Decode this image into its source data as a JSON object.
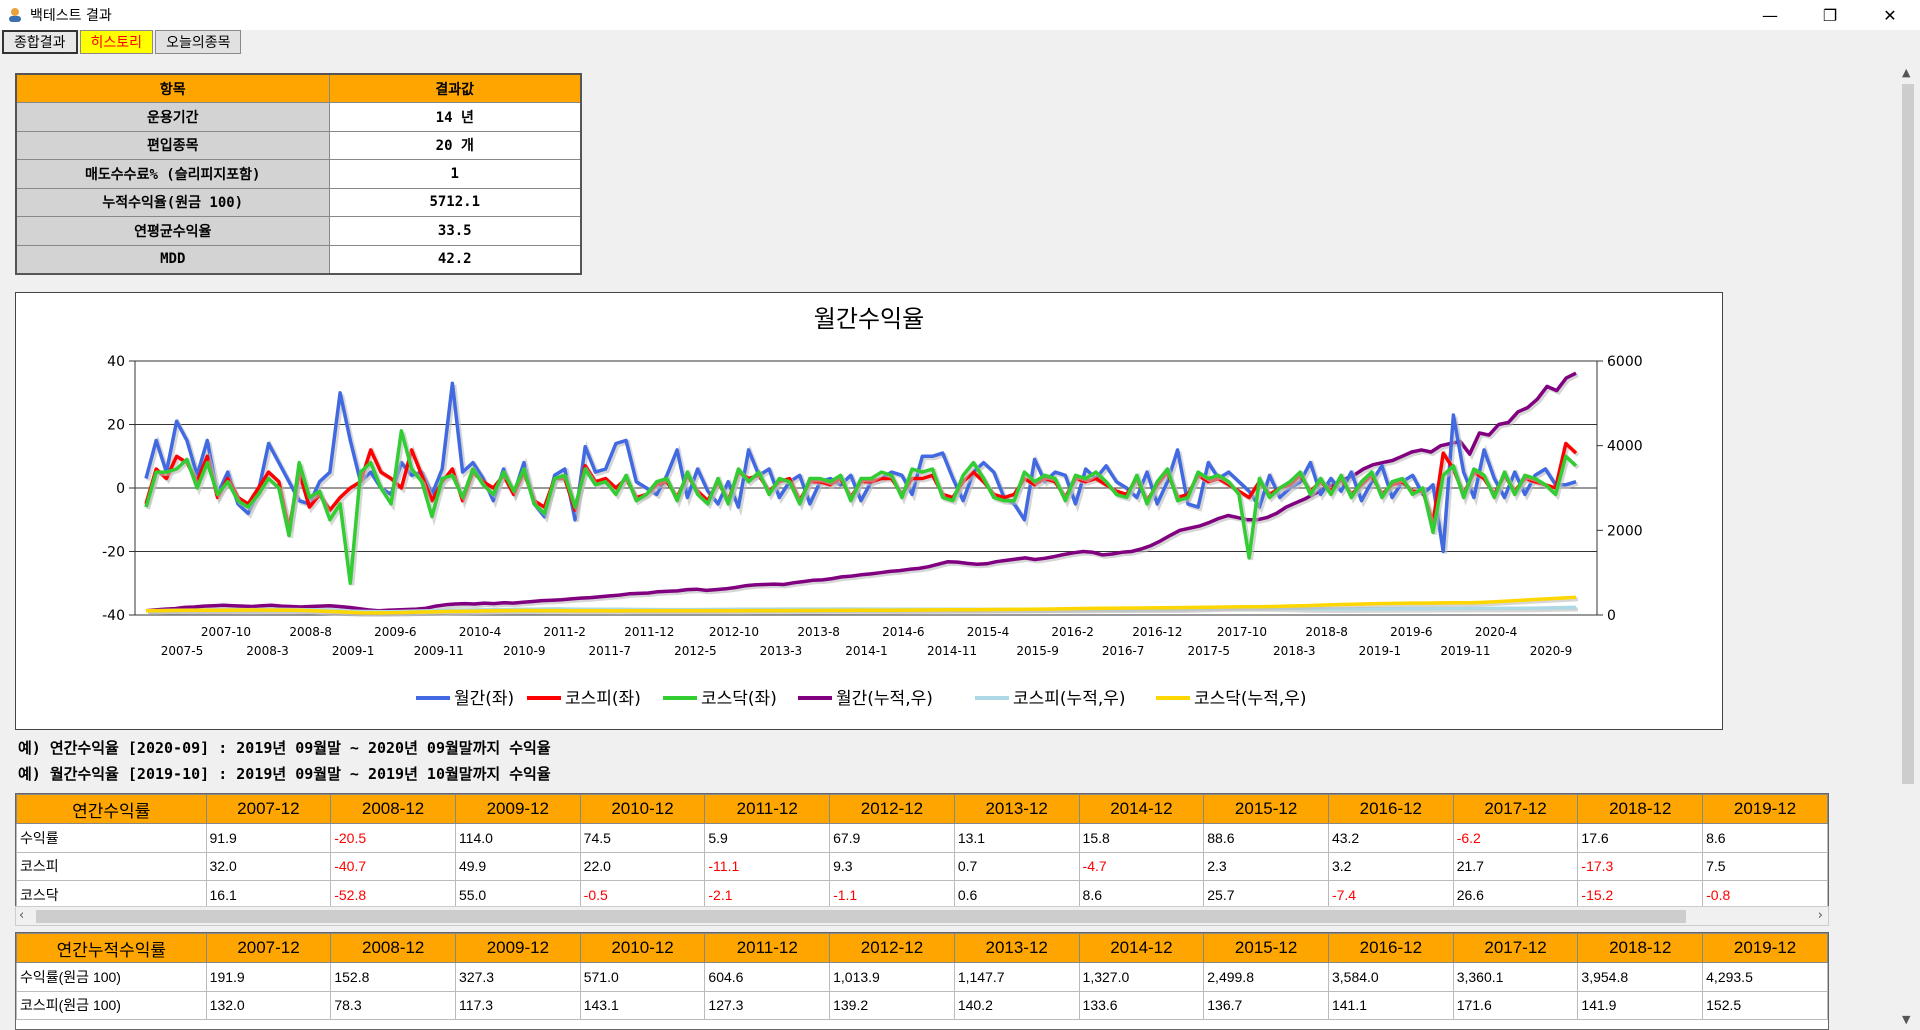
{
  "window": {
    "title": "백테스트 결과",
    "minimize": "—",
    "maximize": "❐",
    "close": "✕"
  },
  "tabs": [
    "종합결과",
    "히스토리",
    "오늘의종목"
  ],
  "summary": {
    "header": [
      "항목",
      "결과값"
    ],
    "rows": [
      [
        "운용기간",
        "14 년"
      ],
      [
        "편입종목",
        "20 개"
      ],
      [
        "매도수수료% (슬리피지포함)",
        "1"
      ],
      [
        "누적수익율(원금 100)",
        "5712.1"
      ],
      [
        "연평균수익율",
        "33.5"
      ],
      [
        "MDD",
        "42.2"
      ]
    ]
  },
  "notes": [
    "예) 연간수익율 [2020-09] : 2019년 09월말 ~ 2020년 09월말까지 수익율",
    "예) 월간수익율 [2019-10] : 2019년 09월말 ~ 2019년 10월말까지 수익율"
  ],
  "annual_table": {
    "header": [
      "연간수익률",
      "2007-12",
      "2008-12",
      "2009-12",
      "2010-12",
      "2011-12",
      "2012-12",
      "2013-12",
      "2014-12",
      "2015-12",
      "2016-12",
      "2017-12",
      "2018-12",
      "2019-12"
    ],
    "rows": [
      [
        "수익률",
        "91.9",
        "-20.5",
        "114.0",
        "74.5",
        "5.9",
        "67.9",
        "13.1",
        "15.8",
        "88.6",
        "43.2",
        "-6.2",
        "17.6",
        "8.6"
      ],
      [
        "코스피",
        "32.0",
        "-40.7",
        "49.9",
        "22.0",
        "-11.1",
        "9.3",
        "0.7",
        "-4.7",
        "2.3",
        "3.2",
        "21.7",
        "-17.3",
        "7.5"
      ],
      [
        "코스닥",
        "16.1",
        "-52.8",
        "55.0",
        "-0.5",
        "-2.1",
        "-1.1",
        "0.6",
        "8.6",
        "25.7",
        "-7.4",
        "26.6",
        "-15.2",
        "-0.8"
      ]
    ]
  },
  "cumulative_table": {
    "header": [
      "연간누적수익률",
      "2007-12",
      "2008-12",
      "2009-12",
      "2010-12",
      "2011-12",
      "2012-12",
      "2013-12",
      "2014-12",
      "2015-12",
      "2016-12",
      "2017-12",
      "2018-12",
      "2019-12"
    ],
    "rows": [
      [
        "수익률(원금 100)",
        "191.9",
        "152.8",
        "327.3",
        "571.0",
        "604.6",
        "1,013.9",
        "1,147.7",
        "1,327.0",
        "2,499.8",
        "3,584.0",
        "3,360.1",
        "3,954.8",
        "4,293.5"
      ],
      [
        "코스피(원금 100)",
        "132.0",
        "78.3",
        "117.3",
        "143.1",
        "127.3",
        "139.2",
        "140.2",
        "133.6",
        "136.7",
        "141.1",
        "171.6",
        "141.9",
        "152.5"
      ]
    ]
  },
  "chart_data": {
    "type": "line",
    "title": "월간수익율",
    "left_axis": {
      "min": -40,
      "max": 40,
      "ticks": [
        "40",
        "20",
        "0",
        "-20",
        "-40"
      ]
    },
    "right_axis": {
      "min": 0,
      "max": 6000,
      "ticks": [
        "6000",
        "4000",
        "2000",
        "0"
      ]
    },
    "x_labels_upper": [
      "2007-10",
      "2008-8",
      "2009-6",
      "2010-4",
      "2011-2",
      "2011-12",
      "2012-10",
      "2013-8",
      "2014-6",
      "2015-4",
      "2016-2",
      "2016-12",
      "2017-10",
      "2018-8",
      "2019-6",
      "2020-4"
    ],
    "x_labels_lower": [
      "2007-5",
      "2008-3",
      "2009-1",
      "2009-11",
      "2010-9",
      "2011-7",
      "2012-5",
      "2013-3",
      "2014-1",
      "2014-11",
      "2015-9",
      "2016-7",
      "2017-5",
      "2018-3",
      "2019-1",
      "2019-11",
      "2020-9"
    ],
    "legend": [
      "월간(좌)",
      "코스피(좌)",
      "코스닥(좌)",
      "월간(누적,우)",
      "코스피(누적,우)",
      "코스닥(누적,우)"
    ],
    "colors": [
      "#4169e1",
      "#ff0000",
      "#32cd32",
      "#800080",
      "#add8e6",
      "#ffd700"
    ],
    "series": [
      {
        "name": "월간(좌)",
        "axis": "left",
        "values": [
          3,
          15,
          5,
          21,
          15,
          4,
          15,
          -2,
          5,
          -5,
          -8,
          -1,
          14,
          8,
          2,
          -4,
          -5,
          2,
          5,
          30,
          15,
          2,
          5,
          0,
          -2,
          8,
          4,
          5,
          -2,
          6,
          33,
          5,
          8,
          3,
          -4,
          6,
          -2,
          8,
          -5,
          -9,
          4,
          6,
          -10,
          13,
          5,
          6,
          14,
          15,
          2,
          0,
          -2,
          4,
          12,
          -3,
          6,
          -1,
          -5,
          2,
          -6,
          12,
          4,
          6,
          -3,
          2,
          4,
          -5,
          2,
          3,
          1,
          4,
          -4,
          2,
          3,
          5,
          4,
          -2,
          10,
          10,
          11,
          3,
          -4,
          5,
          8,
          5,
          -3,
          -5,
          -10,
          9,
          2,
          5,
          4,
          -5,
          6,
          3,
          7,
          2,
          0,
          -3,
          5,
          -5,
          2,
          12,
          -5,
          -6,
          8,
          3,
          5,
          2,
          -1,
          -6,
          4,
          -3,
          0,
          2,
          8,
          -2,
          3,
          -1,
          5,
          -4,
          2,
          7,
          -3,
          2,
          4,
          -2,
          1,
          -20,
          23,
          5,
          -3,
          12,
          3,
          -3,
          5,
          -2,
          4,
          6,
          1,
          1,
          2
        ]
      },
      {
        "name": "코스피(좌)",
        "axis": "left",
        "values": [
          -5,
          6,
          3,
          10,
          8,
          2,
          10,
          -3,
          3,
          -3,
          -5,
          0,
          5,
          2,
          -13,
          5,
          -6,
          -2,
          -7,
          -3,
          0,
          2,
          12,
          5,
          3,
          0,
          12,
          4,
          -4,
          2,
          6,
          -4,
          5,
          2,
          0,
          4,
          -2,
          5,
          -4,
          -6,
          3,
          3,
          -7,
          7,
          2,
          3,
          0,
          3,
          -3,
          -2,
          1,
          2,
          -3,
          4,
          -1,
          -4,
          2,
          -4,
          5,
          3,
          4,
          -1,
          2,
          3,
          -4,
          2,
          2,
          1,
          3,
          -3,
          2,
          2,
          3,
          3,
          -2,
          3,
          3,
          4,
          -2,
          -3,
          2,
          5,
          2,
          -2,
          -3,
          -2,
          3,
          1,
          3,
          2,
          -3,
          3,
          2,
          3,
          1,
          -1,
          -2,
          3,
          -4,
          1,
          5,
          -3,
          -2,
          4,
          2,
          3,
          1,
          -1,
          -3,
          2,
          -2,
          0,
          1,
          4,
          -1,
          2,
          -1,
          3,
          -2,
          1,
          4,
          -2,
          1,
          2,
          -1,
          -1,
          -11,
          11,
          6,
          -2,
          5,
          3,
          -2,
          4,
          -1,
          3,
          2,
          1,
          0,
          14,
          11
        ]
      },
      {
        "name": "코스닥(좌)",
        "axis": "left",
        "values": [
          -6,
          5,
          5,
          6,
          9,
          0,
          8,
          -2,
          2,
          -4,
          -6,
          -2,
          3,
          0,
          -15,
          8,
          -3,
          -1,
          -10,
          -5,
          -30,
          5,
          8,
          0,
          -5,
          18,
          6,
          2,
          -9,
          3,
          4,
          -3,
          6,
          1,
          -2,
          5,
          -1,
          6,
          -5,
          -8,
          3,
          4,
          -6,
          6,
          1,
          2,
          -2,
          4,
          -4,
          -2,
          2,
          3,
          -4,
          5,
          -2,
          -5,
          3,
          -5,
          6,
          2,
          5,
          -2,
          3,
          2,
          -5,
          3,
          3,
          2,
          4,
          -4,
          3,
          3,
          5,
          4,
          -3,
          6,
          5,
          6,
          -3,
          -4,
          4,
          8,
          3,
          -3,
          -4,
          -4,
          5,
          2,
          4,
          3,
          -4,
          4,
          3,
          5,
          2,
          -2,
          -3,
          4,
          -5,
          2,
          6,
          -4,
          -3,
          5,
          3,
          4,
          2,
          -2,
          -22,
          3,
          -3,
          0,
          2,
          5,
          -2,
          3,
          -2,
          4,
          -3,
          2,
          5,
          -3,
          2,
          3,
          -2,
          0,
          -14,
          4,
          7,
          -3,
          6,
          4,
          -3,
          5,
          -2,
          4,
          3,
          1,
          -2,
          10,
          7
        ]
      },
      {
        "name": "월간(누적,우)",
        "axis": "right",
        "values": [
          100,
          120,
          140,
          150,
          180,
          190,
          210,
          220,
          230,
          220,
          210,
          200,
          220,
          230,
          210,
          200,
          190,
          200,
          210,
          220,
          200,
          180,
          150,
          120,
          100,
          110,
          120,
          130,
          140,
          160,
          210,
          240,
          260,
          270,
          260,
          280,
          270,
          290,
          280,
          300,
          320,
          340,
          350,
          360,
          380,
          400,
          410,
          430,
          450,
          470,
          500,
          510,
          520,
          550,
          560,
          570,
          600,
          610,
          580,
          600,
          620,
          650,
          690,
          710,
          720,
          730,
          720,
          760,
          790,
          820,
          830,
          860,
          900,
          920,
          950,
          970,
          1000,
          1030,
          1050,
          1080,
          1100,
          1140,
          1200,
          1260,
          1250,
          1220,
          1200,
          1210,
          1260,
          1290,
          1320,
          1350,
          1310,
          1340,
          1380,
          1430,
          1470,
          1500,
          1480,
          1420,
          1440,
          1480,
          1500,
          1560,
          1640,
          1750,
          1880,
          2000,
          2050,
          2100,
          2180,
          2280,
          2350,
          2300,
          2250,
          2250,
          2300,
          2400,
          2550,
          2650,
          2750,
          2870,
          3000,
          3100,
          3200,
          3300,
          3450,
          3550,
          3600,
          3650,
          3750,
          3850,
          3900,
          3850,
          4000,
          4050,
          4100,
          3800,
          4300,
          4250,
          4500,
          4550,
          4800,
          4900,
          5100,
          5400,
          5300,
          5600,
          5712
        ]
      },
      {
        "name": "코스피(누적,우)",
        "axis": "right",
        "values": [
          100,
          105,
          110,
          115,
          118,
          120,
          125,
          128,
          130,
          132,
          128,
          120,
          110,
          95,
          85,
          80,
          78,
          85,
          95,
          105,
          112,
          117,
          120,
          125,
          130,
          135,
          140,
          143,
          140,
          138,
          136,
          135,
          133,
          130,
          128,
          127,
          128,
          130,
          132,
          135,
          137,
          138,
          139,
          140,
          139,
          140,
          141,
          140,
          139,
          138,
          137,
          136,
          135,
          134,
          134,
          133,
          134,
          135,
          136,
          137,
          137,
          137,
          138,
          139,
          140,
          140,
          140,
          141,
          142,
          150,
          160,
          170,
          172,
          171,
          168,
          160,
          150,
          145,
          142,
          142,
          143,
          145,
          148,
          150,
          152,
          153,
          154,
          155,
          156,
          157,
          158,
          160,
          165,
          175,
          180
        ]
      },
      {
        "name": "코스닥(누적,우)",
        "axis": "right",
        "values": [
          100,
          105,
          108,
          110,
          112,
          114,
          116,
          117,
          116,
          115,
          110,
          100,
          85,
          70,
          55,
          50,
          52,
          60,
          70,
          78,
          85,
          90,
          95,
          100,
          105,
          106,
          105,
          104,
          102,
          101,
          100,
          98,
          99,
          100,
          101,
          100,
          99,
          100,
          101,
          102,
          103,
          104,
          105,
          106,
          107,
          108,
          109,
          110,
          112,
          114,
          116,
          118,
          120,
          122,
          125,
          128,
          130,
          133,
          136,
          140,
          145,
          150,
          155,
          160,
          162,
          165,
          168,
          170,
          175,
          180,
          185,
          190,
          193,
          196,
          200,
          210,
          220,
          230,
          240,
          250,
          260,
          270,
          275,
          280,
          282,
          285,
          288,
          290,
          300,
          320,
          340,
          360,
          380,
          400,
          420
        ]
      }
    ]
  }
}
